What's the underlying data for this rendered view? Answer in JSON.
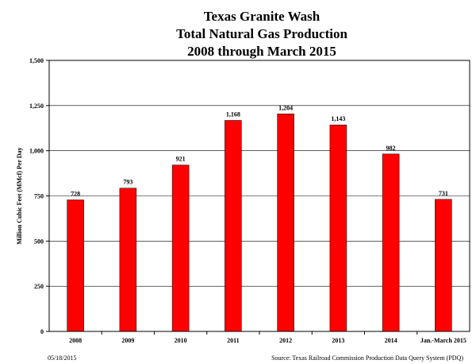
{
  "chart_data": {
    "type": "bar",
    "title_lines": [
      "Texas Granite Wash",
      "Total Natural Gas Production",
      "2008 through March 2015"
    ],
    "ylabel": "Million Cubic Feet (MMcf) Per Day",
    "xlabel": "",
    "categories": [
      "2008",
      "2009",
      "2010",
      "2011",
      "2012",
      "2013",
      "2014",
      "Jan.-March 2015"
    ],
    "values": [
      728,
      793,
      921,
      1168,
      1204,
      1143,
      982,
      731
    ],
    "value_labels": [
      "728",
      "793",
      "921",
      "1,168",
      "1,204",
      "1,143",
      "982",
      "731"
    ],
    "ylim": [
      0,
      1500
    ],
    "yticks": [
      0,
      250,
      500,
      750,
      1000,
      1250,
      1500
    ],
    "ytick_labels": [
      "0",
      "250",
      "500",
      "750",
      "1,000",
      "1,250",
      "1,500"
    ],
    "grid": true,
    "bar_color": "#ff0000",
    "legend": "none"
  },
  "footer": {
    "date": "05/18/2015",
    "source": "Source: Texas Railroad Commission Production Data Query System (PDQ)"
  }
}
